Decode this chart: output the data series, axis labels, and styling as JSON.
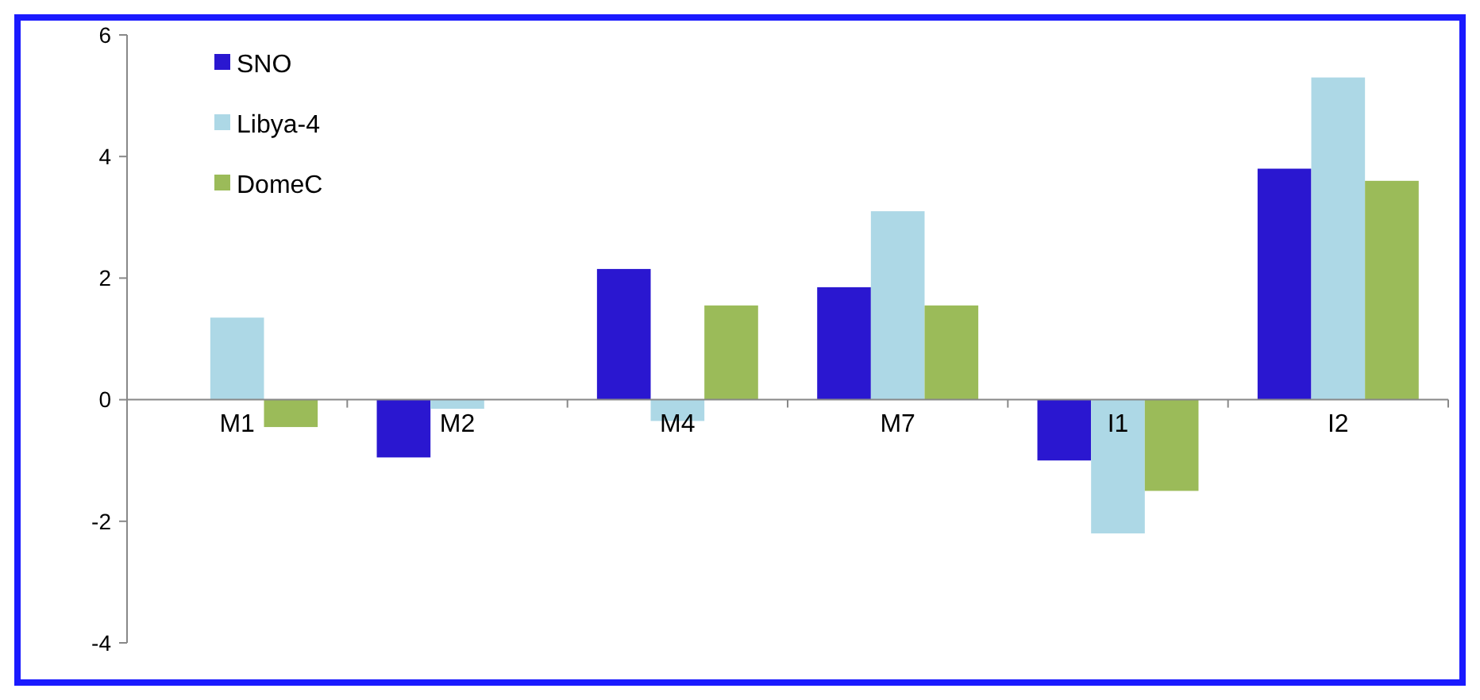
{
  "chart_data": {
    "type": "bar",
    "categories": [
      "M1",
      "M2",
      "M4",
      "M7",
      "I1",
      "I2"
    ],
    "series": [
      {
        "name": "SNO",
        "color": "#2a17d0",
        "values": [
          null,
          -0.95,
          2.15,
          1.85,
          -1.0,
          3.8
        ]
      },
      {
        "name": "Libya-4",
        "color": "#add8e6",
        "values": [
          1.35,
          -0.15,
          -0.35,
          3.1,
          -2.2,
          5.3
        ]
      },
      {
        "name": "DomeC",
        "color": "#9bbb59",
        "values": [
          -0.45,
          null,
          1.55,
          1.55,
          -1.5,
          3.6
        ]
      }
    ],
    "ylim": [
      -4,
      6
    ],
    "yticks": [
      -4,
      -2,
      0,
      2,
      4,
      6
    ],
    "grid": false,
    "legend": "top left"
  }
}
